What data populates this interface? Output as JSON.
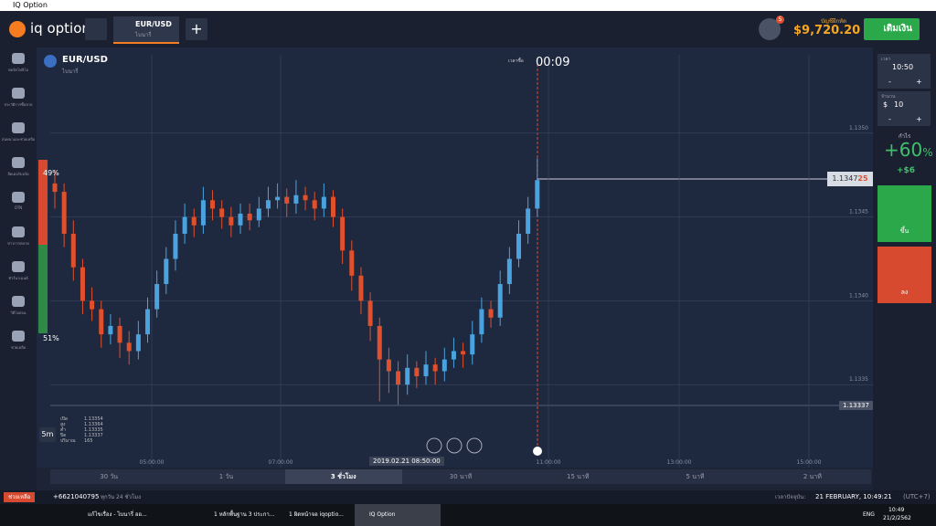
{
  "window_title": "IQ Option",
  "header": {
    "logo": "iq option",
    "tab_asset": "EUR/USD",
    "tab_type": "ไบนารี่",
    "badge": "5",
    "balance_label": "บัญชีฝึกหัด",
    "balance": "$9,720.20",
    "deposit": "เติมเงิน"
  },
  "sidebar": [
    "พอร์ตโฟลิโอ",
    "ประวัติการซื้อขาย",
    "สนทนาและช่วยเหลือ",
    "ลีดเดอร์บอร์ด",
    "OTN",
    "ข่าวการตลาด",
    "ทัวร์นาเมนต์",
    "วิดีโอสอน",
    "ช่วยเหลือ"
  ],
  "asset": {
    "name": "EUR/USD",
    "type": "ไบนารี่",
    "timer_label": "เวลาซื้อ",
    "timer": "00:09",
    "sell_pct": "49%",
    "buy_pct": "51%",
    "price_main": "1.1347",
    "price_tail": "25",
    "low_label": "1.13337",
    "crosshair_time": "2019.02.21 08:50:00",
    "candle_size": "5m"
  },
  "ohlc": {
    "labels": [
      "เปิด",
      "สูง",
      "ต่ำ",
      "ปิด",
      "ปริมาณ"
    ],
    "values": [
      "1.13354",
      "1.13364",
      "1.13335",
      "1.13337",
      "165"
    ]
  },
  "chart_data": {
    "type": "candlestick",
    "up_color": "#4aa3df",
    "down_color": "#e0502d",
    "ylim": [
      1.133,
      1.1355
    ],
    "yticks": [
      {
        "value": 1.135,
        "label": "1.1350"
      },
      1.1345,
      {
        "value": 1.134,
        "label": "1.1340"
      },
      1.1335
    ],
    "time_labels": [
      "05:00:00",
      "07:00:00",
      "11:00:00",
      "13:00:00",
      "15:00:00"
    ],
    "candles": [
      [
        1.1347,
        1.13478,
        1.13455,
        1.13465
      ],
      [
        1.13465,
        1.1347,
        1.13432,
        1.1344
      ],
      [
        1.1344,
        1.13448,
        1.13412,
        1.1342
      ],
      [
        1.1342,
        1.13425,
        1.13392,
        1.134
      ],
      [
        1.134,
        1.13408,
        1.13388,
        1.13395
      ],
      [
        1.13395,
        1.134,
        1.13372,
        1.1338
      ],
      [
        1.1338,
        1.13392,
        1.13374,
        1.13385
      ],
      [
        1.13385,
        1.1339,
        1.13366,
        1.13375
      ],
      [
        1.13375,
        1.13382,
        1.13362,
        1.1337
      ],
      [
        1.1337,
        1.13388,
        1.13365,
        1.1338
      ],
      [
        1.1338,
        1.13402,
        1.13375,
        1.13395
      ],
      [
        1.13395,
        1.13418,
        1.1339,
        1.1341
      ],
      [
        1.1341,
        1.13432,
        1.13404,
        1.13425
      ],
      [
        1.13425,
        1.13448,
        1.13418,
        1.1344
      ],
      [
        1.1344,
        1.13458,
        1.13434,
        1.1345
      ],
      [
        1.1345,
        1.13455,
        1.13438,
        1.13445
      ],
      [
        1.13445,
        1.13468,
        1.1344,
        1.1346
      ],
      [
        1.1346,
        1.13466,
        1.13448,
        1.13455
      ],
      [
        1.13455,
        1.1346,
        1.13443,
        1.1345
      ],
      [
        1.1345,
        1.13456,
        1.13438,
        1.13445
      ],
      [
        1.13445,
        1.13458,
        1.1344,
        1.13452
      ],
      [
        1.13452,
        1.13458,
        1.13442,
        1.13448
      ],
      [
        1.13448,
        1.13462,
        1.13444,
        1.13455
      ],
      [
        1.13455,
        1.13468,
        1.1345,
        1.1346
      ],
      [
        1.1346,
        1.1347,
        1.13455,
        1.13462
      ],
      [
        1.13462,
        1.13467,
        1.1345,
        1.13458
      ],
      [
        1.13458,
        1.13472,
        1.13452,
        1.13463
      ],
      [
        1.13463,
        1.13468,
        1.13454,
        1.1346
      ],
      [
        1.1346,
        1.13465,
        1.13448,
        1.13455
      ],
      [
        1.13455,
        1.1347,
        1.1345,
        1.13462
      ],
      [
        1.13462,
        1.13466,
        1.13444,
        1.1345
      ],
      [
        1.1345,
        1.13455,
        1.13422,
        1.1343
      ],
      [
        1.1343,
        1.13436,
        1.13406,
        1.13415
      ],
      [
        1.13415,
        1.1342,
        1.13392,
        1.134
      ],
      [
        1.134,
        1.13405,
        1.13376,
        1.13385
      ],
      [
        1.13385,
        1.1339,
        1.1334,
        1.13365
      ],
      [
        1.13365,
        1.13372,
        1.13345,
        1.13358
      ],
      [
        1.13358,
        1.13364,
        1.13338,
        1.1335
      ],
      [
        1.1335,
        1.13368,
        1.13344,
        1.1336
      ],
      [
        1.1336,
        1.13364,
        1.13348,
        1.13355
      ],
      [
        1.13355,
        1.1337,
        1.1335,
        1.13362
      ],
      [
        1.13362,
        1.13366,
        1.1335,
        1.13358
      ],
      [
        1.13358,
        1.13372,
        1.13352,
        1.13365
      ],
      [
        1.13365,
        1.13378,
        1.1336,
        1.1337
      ],
      [
        1.1337,
        1.13375,
        1.1336,
        1.13368
      ],
      [
        1.13368,
        1.13388,
        1.13362,
        1.1338
      ],
      [
        1.1338,
        1.13402,
        1.13375,
        1.13395
      ],
      [
        1.13395,
        1.134,
        1.13384,
        1.1339
      ],
      [
        1.1339,
        1.13418,
        1.13385,
        1.1341
      ],
      [
        1.1341,
        1.13432,
        1.13404,
        1.13425
      ],
      [
        1.13425,
        1.13448,
        1.1342,
        1.1344
      ],
      [
        1.1344,
        1.13462,
        1.13434,
        1.13455
      ],
      [
        1.13455,
        1.13485,
        1.1345,
        1.13472
      ]
    ]
  },
  "timeframes": [
    "30 วัน",
    "1 วัน",
    "3 ชั่วโมง",
    "30 นาที",
    "15 นาที",
    "5 นาที",
    "2 นาที"
  ],
  "trade_panel": {
    "time_label": "เวลา",
    "time": "10:50",
    "amount_label": "จำนวน",
    "currency": "$",
    "amount": "10",
    "minus": "-",
    "plus": "+",
    "profit_label": "กำไร",
    "profit": "+60",
    "profit_unit": "%",
    "profit_amount": "+$6",
    "up": "ขึ้น",
    "down": "ลง"
  },
  "status": {
    "support": "ช่วยเหลือ",
    "phone": "+6621040795",
    "hours": "ทุกวัน 24 ชั่วโมง",
    "time_label": "เวลาปัจจุบัน:",
    "datetime": "21 FEBRUARY, 10:49:21",
    "tz": "(UTC+7)"
  },
  "taskbar": {
    "apps": [
      "แก้ไขเรื่อง - ไบนารี่ ออ...",
      "1 หลักพื้นฐาน 3 ประกา...",
      "1 ผิดหน้าจอ iqoptio...",
      "IQ Option"
    ],
    "lang": "ENG",
    "clock": "10:49",
    "date": "21/2/2562"
  }
}
